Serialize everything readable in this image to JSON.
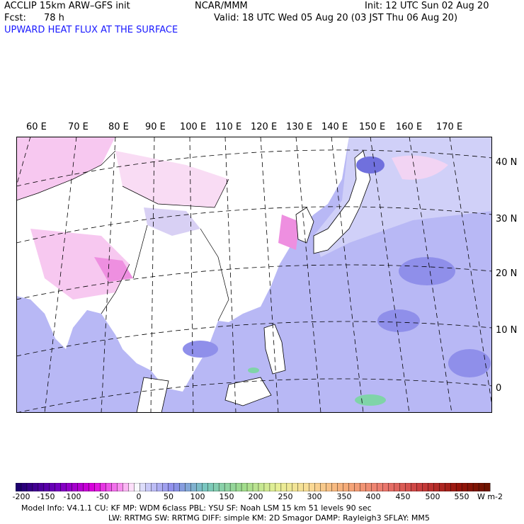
{
  "header": {
    "model": "ACCLIP 15km ARW–GFS init",
    "org": "NCAR/MMM",
    "init": "Init: 12 UTC Sun 02 Aug 20",
    "fcst_label": "Fcst:",
    "fcst_value": "78 h",
    "valid": "Valid: 18 UTC Wed 05 Aug 20 (03 JST Thu 06 Aug 20)",
    "field": "UPWARD HEAT FLUX AT THE SURFACE"
  },
  "map": {
    "lon_labels": [
      "60 E",
      "70 E",
      "80 E",
      "90 E",
      "100 E",
      "110 E",
      "120 E",
      "130 E",
      "140 E",
      "150 E",
      "160 E",
      "170 E"
    ],
    "lat_labels": [
      "40 N",
      "30 N",
      "20 N",
      "10 N",
      "0"
    ],
    "colors": {
      "land_neutral": "#ffffff",
      "land_negative": "#f7c8f0",
      "land_strong_negative": "#ee8fe0",
      "ocean_positive": "#b8b8f5",
      "ocean_mid": "#9a9aee",
      "ocean_high": "#7070dd",
      "green_patch": "#7fd4a8",
      "coast": "#000000",
      "grid": "#000000"
    }
  },
  "colorbar": {
    "labels": [
      "-200",
      "-150",
      "-100",
      "-50",
      "0",
      "50",
      "100",
      "150",
      "200",
      "250",
      "300",
      "350",
      "400",
      "450",
      "500",
      "550"
    ],
    "units": "W m-2"
  },
  "info": {
    "line1": "Model Info: V4.1.1     CU: KF        MP: WDM 6class   PBL: YSU         SF: Noah LSM     15 km    51 levels    90 sec",
    "line2": "LW: RRTMG     SW: RRTMG   DIFF: simple KM: 2D Smagor DAMP: Rayleigh3  SFLAY: MM5"
  }
}
